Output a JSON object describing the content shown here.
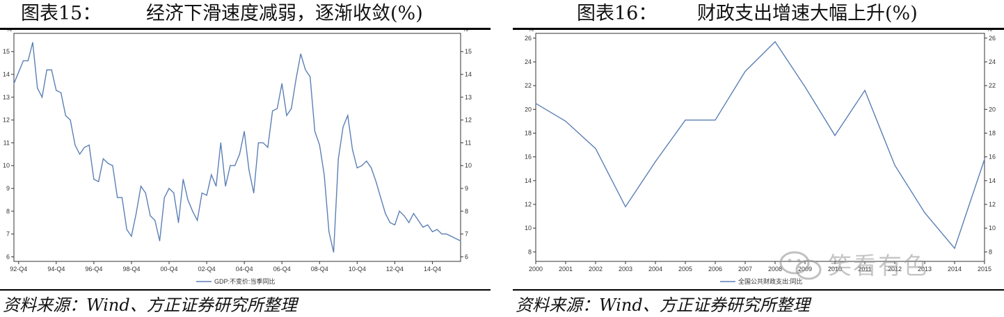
{
  "charts": [
    {
      "figure_label": "图表15：",
      "title_text": "经济下滑速度减弱，逐渐收敛(%)",
      "source": "资料来源：Wind、方正证券研究所整理",
      "y_unit": "%",
      "legend_label": "GDP:不变价:当季同比",
      "line_color": "#5b7fb5"
    },
    {
      "figure_label": "图表16：",
      "title_text": "财政支出增速大幅上升(%)",
      "source": "资料来源：Wind、方正证券研究所整理",
      "y_unit": "%",
      "legend_label": "全国公共财政支出:同比",
      "line_color": "#5b7fb5"
    }
  ],
  "watermark": "笑看有色",
  "chart_data": [
    {
      "type": "line",
      "title": "经济下滑速度减弱，逐渐收敛(%)",
      "xlabel": "",
      "ylabel": "%",
      "ylim": [
        5.8,
        15.8
      ],
      "y_ticks": [
        6,
        7,
        8,
        9,
        10,
        11,
        12,
        13,
        14,
        15
      ],
      "x_tick_labels": [
        "92-Q4",
        "94-Q4",
        "96-Q4",
        "98-Q4",
        "00-Q4",
        "02-Q4",
        "04-Q4",
        "06-Q4",
        "08-Q4",
        "10-Q4",
        "12-Q4",
        "14-Q4"
      ],
      "legend_position": "bottom",
      "grid": false,
      "series": [
        {
          "name": "GDP:不变价:当季同比",
          "values": [
            13.6,
            14.1,
            14.6,
            14.6,
            15.4,
            13.4,
            13.0,
            14.2,
            14.2,
            13.3,
            13.2,
            12.2,
            12.0,
            10.9,
            10.5,
            10.8,
            10.9,
            9.4,
            9.3,
            10.3,
            10.1,
            10.0,
            8.6,
            8.6,
            7.2,
            6.9,
            7.9,
            9.1,
            8.8,
            7.8,
            7.6,
            6.7,
            8.6,
            9.0,
            8.8,
            7.5,
            9.4,
            8.5,
            8.0,
            7.6,
            8.8,
            8.7,
            9.6,
            9.1,
            11.0,
            9.1,
            10.0,
            10.0,
            10.5,
            11.5,
            9.8,
            8.8,
            11.0,
            11.0,
            10.8,
            12.4,
            12.5,
            13.6,
            12.2,
            12.5,
            13.8,
            14.9,
            14.2,
            13.9,
            11.5,
            10.9,
            9.6,
            7.1,
            6.2,
            10.3,
            11.7,
            12.2,
            10.7,
            9.9,
            10.0,
            10.2,
            9.9,
            9.3,
            8.6,
            7.9,
            7.5,
            7.4,
            8.0,
            7.8,
            7.5,
            7.9,
            7.6,
            7.3,
            7.4,
            7.1,
            7.2,
            7.0,
            7.0,
            6.9,
            6.8,
            6.7
          ]
        }
      ]
    },
    {
      "type": "line",
      "title": "财政支出增速大幅上升(%)",
      "xlabel": "",
      "ylabel": "%",
      "ylim": [
        7.2,
        26.4
      ],
      "y_ticks": [
        8,
        10,
        12,
        14,
        16,
        18,
        20,
        22,
        24,
        26
      ],
      "x": [
        2000,
        2001,
        2002,
        2003,
        2004,
        2005,
        2006,
        2007,
        2008,
        2009,
        2010,
        2011,
        2012,
        2013,
        2014,
        2015
      ],
      "legend_position": "bottom",
      "grid": false,
      "series": [
        {
          "name": "全国公共财政支出:同比",
          "values": [
            20.5,
            19.0,
            16.7,
            11.8,
            15.6,
            19.1,
            19.1,
            23.2,
            25.7,
            21.9,
            17.8,
            21.6,
            15.3,
            11.3,
            8.3,
            15.8
          ]
        }
      ]
    }
  ]
}
